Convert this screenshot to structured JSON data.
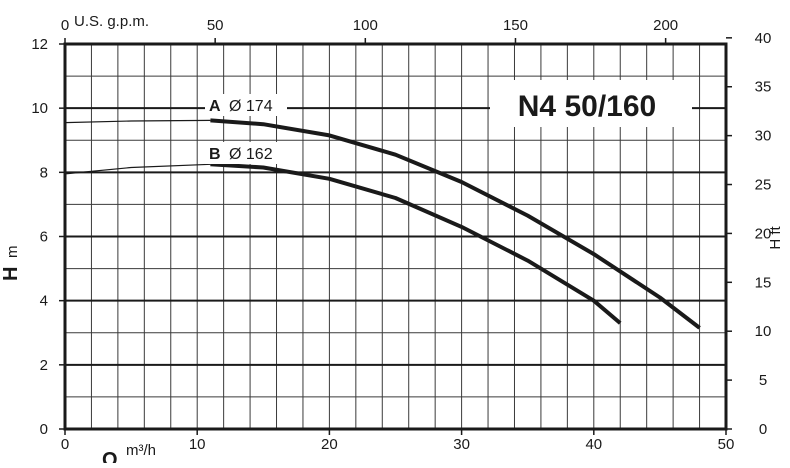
{
  "chart_data": {
    "type": "line",
    "title": "N4 50/160",
    "x_axis_bottom": {
      "symbol": "Q",
      "unit": "m³/h",
      "range": [
        0,
        50
      ],
      "ticks": [
        0,
        10,
        20,
        30,
        40,
        50
      ]
    },
    "x_axis_top": {
      "label": "U.S. g.p.m.",
      "range": [
        0,
        220.1
      ],
      "ticks": [
        0,
        50,
        100,
        150,
        200
      ]
    },
    "y_axis_left": {
      "symbol": "H",
      "unit": "m",
      "range": [
        0,
        12
      ],
      "ticks": [
        0,
        2,
        4,
        6,
        8,
        10,
        12
      ]
    },
    "y_axis_right": {
      "label": "H ft",
      "range": [
        0,
        39.37
      ],
      "ticks": [
        0,
        5,
        10,
        15,
        20,
        25,
        30,
        35,
        40
      ]
    },
    "grid": true,
    "series": [
      {
        "name": "A",
        "diameter_label": "Ø 174",
        "color": "#1a1a1a",
        "x": [
          0,
          5,
          11,
          15,
          20,
          25,
          30,
          35,
          40,
          45,
          48
        ],
        "y": [
          9.55,
          9.6,
          9.62,
          9.5,
          9.15,
          8.55,
          7.7,
          6.65,
          5.45,
          4.1,
          3.15
        ],
        "solid_from_x": 11
      },
      {
        "name": "B",
        "diameter_label": "Ø 162",
        "color": "#1a1a1a",
        "x": [
          0,
          5,
          11,
          15,
          20,
          25,
          30,
          35,
          40,
          42
        ],
        "y": [
          7.95,
          8.15,
          8.25,
          8.15,
          7.8,
          7.2,
          6.3,
          5.25,
          4.0,
          3.3
        ],
        "solid_from_x": 11
      }
    ]
  }
}
